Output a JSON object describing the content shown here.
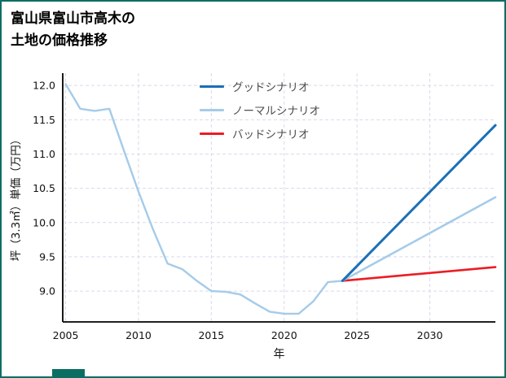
{
  "page": {
    "title_line1": "富山県富山市高木の",
    "title_line2": "土地の価格推移",
    "border_color": "#0b6e63"
  },
  "chart_data": {
    "type": "line",
    "title": "富山県富山市高木の土地の価格推移",
    "xlabel": "年",
    "ylabel": "坪（3.3㎡）単価（万円）",
    "xlim": [
      2004.8,
      2034.5
    ],
    "ylim": [
      8.55,
      12.18
    ],
    "xticks": [
      2005,
      2010,
      2015,
      2020,
      2025,
      2030
    ],
    "yticks": [
      9.0,
      9.5,
      10.0,
      10.5,
      11.0,
      11.5,
      12.0
    ],
    "grid": true,
    "legend_position": "upper center",
    "series": [
      {
        "name": "",
        "color": "#a5cbe9",
        "width": 2.4,
        "legend": false,
        "x": [
          2005,
          2006,
          2007,
          2008,
          2009,
          2010,
          2011,
          2012,
          2013,
          2014,
          2015,
          2016,
          2017,
          2018,
          2019,
          2020,
          2021,
          2022,
          2023,
          2024
        ],
        "y": [
          12.02,
          11.66,
          11.63,
          11.66,
          11.05,
          10.45,
          9.9,
          9.4,
          9.32,
          9.15,
          9.0,
          8.99,
          8.95,
          8.82,
          8.7,
          8.67,
          8.67,
          8.85,
          9.13,
          9.15
        ]
      },
      {
        "name": "バッドシナリオ",
        "color": "#ec1c23",
        "width": 2.6,
        "legend": true,
        "x": [
          2024,
          2034.5
        ],
        "y": [
          9.15,
          9.35
        ]
      },
      {
        "name": "ノーマルシナリオ",
        "color": "#a5cbe9",
        "width": 2.6,
        "legend": true,
        "x": [
          2024,
          2034.5
        ],
        "y": [
          9.15,
          10.37
        ]
      },
      {
        "name": "グッドシナリオ",
        "color": "#1c6fb6",
        "width": 3,
        "legend": true,
        "x": [
          2024,
          2034.5
        ],
        "y": [
          9.15,
          11.42
        ]
      }
    ]
  }
}
